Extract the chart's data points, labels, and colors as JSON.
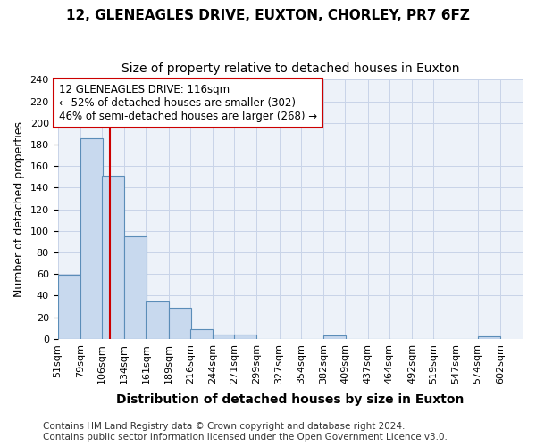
{
  "title": "12, GLENEAGLES DRIVE, EUXTON, CHORLEY, PR7 6FZ",
  "subtitle": "Size of property relative to detached houses in Euxton",
  "xlabel": "Distribution of detached houses by size in Euxton",
  "ylabel": "Number of detached properties",
  "bar_values": [
    59,
    186,
    151,
    95,
    35,
    29,
    9,
    4,
    4,
    0,
    0,
    0,
    3,
    0,
    0,
    0,
    0,
    0,
    0,
    2
  ],
  "bin_labels": [
    "51sqm",
    "79sqm",
    "106sqm",
    "134sqm",
    "161sqm",
    "189sqm",
    "216sqm",
    "244sqm",
    "271sqm",
    "299sqm",
    "327sqm",
    "354sqm",
    "382sqm",
    "409sqm",
    "437sqm",
    "464sqm",
    "492sqm",
    "519sqm",
    "547sqm",
    "574sqm",
    "602sqm"
  ],
  "bin_edges": [
    51,
    79,
    106,
    134,
    161,
    189,
    216,
    244,
    271,
    299,
    327,
    354,
    382,
    409,
    437,
    464,
    492,
    519,
    547,
    574,
    602
  ],
  "bar_color": "#c8d9ee",
  "bar_edge_color": "#5b8db8",
  "property_size": 116,
  "property_line_color": "#cc0000",
  "annotation_text": "12 GLENEAGLES DRIVE: 116sqm\n← 52% of detached houses are smaller (302)\n46% of semi-detached houses are larger (268) →",
  "annotation_box_facecolor": "#ffffff",
  "annotation_box_edgecolor": "#cc0000",
  "ylim": [
    0,
    240
  ],
  "yticks": [
    0,
    20,
    40,
    60,
    80,
    100,
    120,
    140,
    160,
    180,
    200,
    220,
    240
  ],
  "grid_color": "#c8d4e8",
  "background_color": "#edf2f9",
  "footer_line1": "Contains HM Land Registry data © Crown copyright and database right 2024.",
  "footer_line2": "Contains public sector information licensed under the Open Government Licence v3.0.",
  "title_fontsize": 11,
  "subtitle_fontsize": 10,
  "xlabel_fontsize": 10,
  "ylabel_fontsize": 9,
  "tick_fontsize": 8,
  "annotation_fontsize": 8.5,
  "footer_fontsize": 7.5
}
